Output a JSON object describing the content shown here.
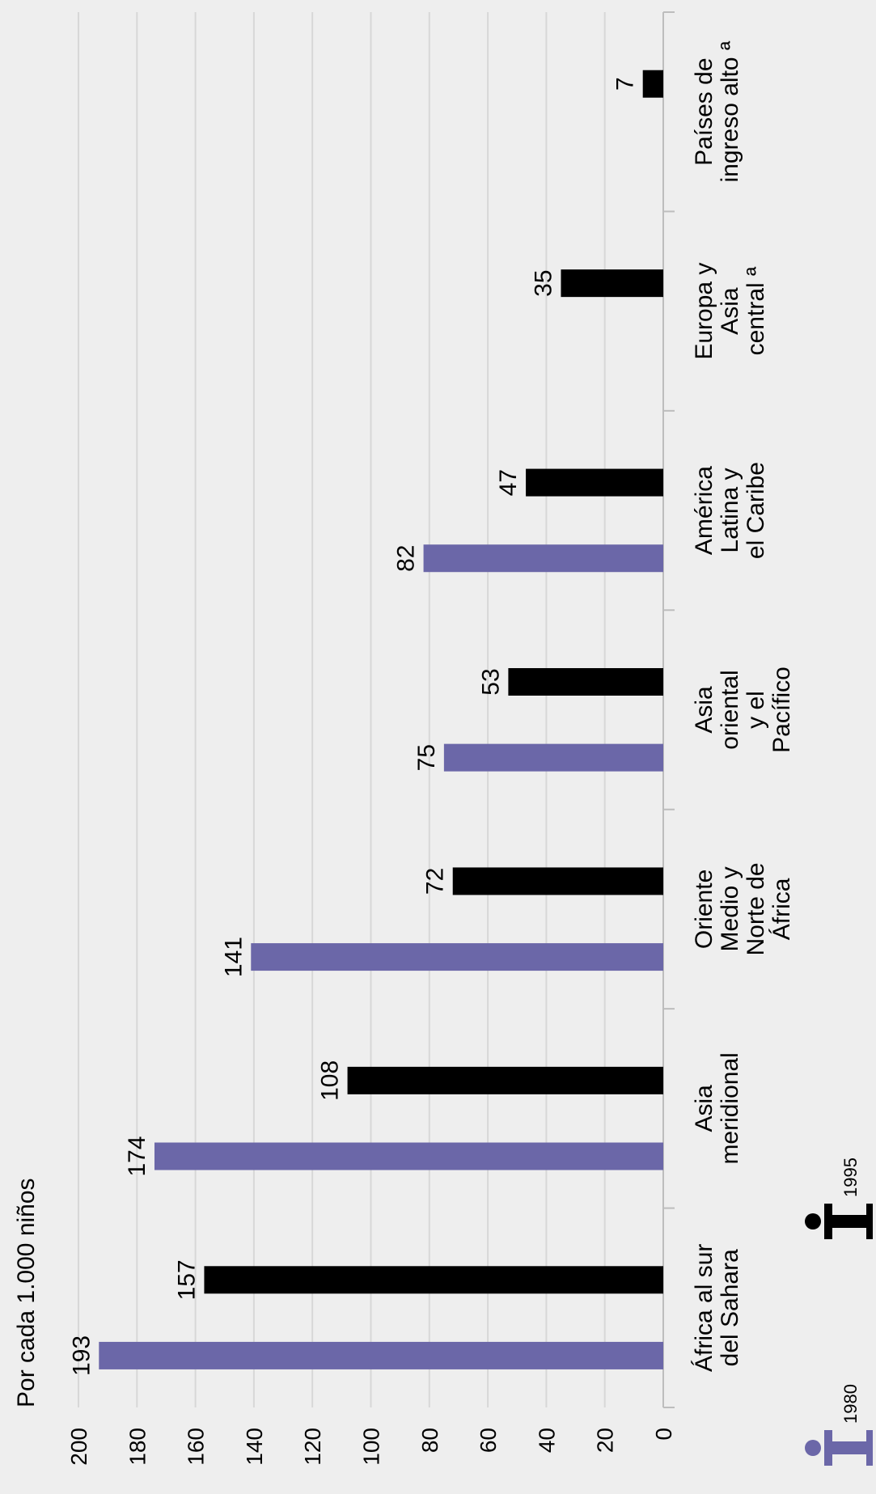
{
  "chart_data": {
    "type": "bar",
    "orientation": "horizontal-rotated",
    "ylabel": "Por cada 1.000 niños",
    "ylim": [
      0,
      200
    ],
    "ticks": [
      200,
      180,
      160,
      140,
      120,
      100,
      80,
      60,
      40,
      20,
      0
    ],
    "grid": true,
    "categories": [
      [
        "África al sur",
        "del Sahara"
      ],
      [
        "Asia",
        "meridional"
      ],
      [
        "Oriente",
        "Medio y",
        "Norte de",
        "África"
      ],
      [
        "Asia",
        "oriental",
        "y el",
        "Pacífico"
      ],
      [
        "América",
        "Latina y",
        "el Caribe"
      ],
      [
        "Europa y",
        "Asia",
        "central ª"
      ],
      [
        "Países de",
        "ingreso alto ª"
      ]
    ],
    "series": [
      {
        "name": "1980",
        "color": "#6b67a8",
        "values": [
          193,
          174,
          141,
          75,
          82,
          null,
          null
        ]
      },
      {
        "name": "1995",
        "color": "#000000",
        "values": [
          157,
          108,
          72,
          53,
          47,
          35,
          7
        ]
      }
    ],
    "legend": [
      {
        "label": "1980",
        "color": "#6b67a8",
        "icon": "child-figure-icon"
      },
      {
        "label": "1995",
        "color": "#000000",
        "icon": "child-figure-icon"
      }
    ]
  }
}
